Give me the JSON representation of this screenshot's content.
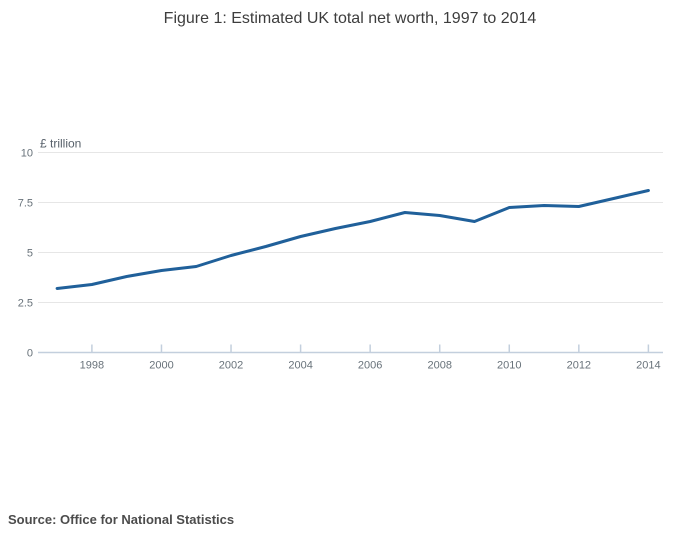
{
  "chart": {
    "title": "Figure 1: Estimated UK total net worth, 1997 to 2014",
    "unit_label": "£ trillion"
  },
  "source": {
    "text": "Source: Office for National Statistics"
  },
  "chart_data": {
    "type": "line",
    "title": "Figure 1: Estimated UK total net worth, 1997 to 2014",
    "xlabel": "",
    "ylabel": "£ trillion",
    "x": [
      1997,
      1998,
      1999,
      2000,
      2001,
      2002,
      2003,
      2004,
      2005,
      2006,
      2007,
      2008,
      2009,
      2010,
      2011,
      2012,
      2013,
      2014
    ],
    "y": [
      3.2,
      3.4,
      3.8,
      4.1,
      4.3,
      4.85,
      5.3,
      5.8,
      6.2,
      6.55,
      7.0,
      6.85,
      6.55,
      7.25,
      7.35,
      7.3,
      7.7,
      8.1
    ],
    "series_name": "Estimated UK total net worth (£ trillion)",
    "xticks": [
      1998,
      2000,
      2002,
      2004,
      2006,
      2008,
      2010,
      2012,
      2014
    ],
    "xtick_labels": [
      "1998",
      "2000",
      "2002",
      "2004",
      "2006",
      "2008",
      "2010",
      "2012",
      "2014"
    ],
    "yticks": [
      0,
      2.5,
      5,
      7.5,
      10
    ],
    "ytick_labels": [
      "0",
      "2.5",
      "5",
      "7.5",
      "10"
    ],
    "xlim": [
      1996.45,
      2014.42
    ],
    "ylim": [
      0,
      10
    ],
    "grid": true,
    "legend": "none",
    "colors": {
      "line": "#20609a",
      "gridline": "#e6e6e6",
      "axis": "#c3cfdd",
      "tick_label": "#68727a",
      "unit_label": "#57606a",
      "title": "#3d3d3d",
      "source": "#4c4c4c",
      "background": "#ffffff"
    }
  }
}
